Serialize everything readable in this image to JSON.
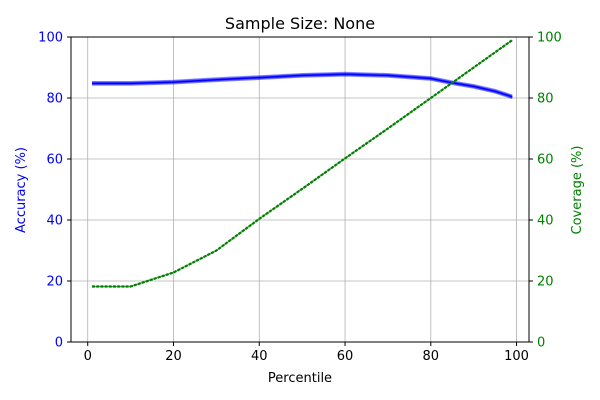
{
  "chart_data": {
    "type": "line",
    "title": "Sample Size: None",
    "xlabel": "Percentile",
    "ylabel_left": "Accuracy (%)",
    "ylabel_right": "Coverage (%)",
    "xlim": [
      -3.9,
      102.9
    ],
    "ylim_left": [
      0,
      100
    ],
    "ylim_right": [
      0,
      100
    ],
    "x_ticks": [
      0,
      20,
      40,
      60,
      80,
      100
    ],
    "y_ticks_left": [
      0,
      20,
      40,
      60,
      80,
      100
    ],
    "y_ticks_right": [
      0,
      20,
      40,
      60,
      80,
      100
    ],
    "grid": true,
    "colors": {
      "accuracy": "#0000ff",
      "coverage": "#008000",
      "grid": "#b0b0b0",
      "axis": "#000000"
    },
    "series": [
      {
        "axis": "left",
        "color": "#0000ff",
        "x": [
          1,
          10,
          20,
          30,
          40,
          50,
          60,
          70,
          80,
          85,
          90,
          95,
          99
        ],
        "y": [
          84.8,
          84.8,
          85.2,
          86.0,
          86.7,
          87.4,
          87.8,
          87.4,
          86.4,
          85.0,
          83.8,
          82.2,
          80.4
        ]
      },
      {
        "axis": "right",
        "color": "#008000",
        "x": [
          1,
          10,
          20,
          30,
          40,
          50,
          60,
          70,
          80,
          90,
          99
        ],
        "y": [
          18.2,
          18.2,
          22.8,
          30.0,
          40.4,
          50.2,
          60.2,
          70.0,
          80.0,
          90.0,
          99.0
        ]
      }
    ]
  }
}
